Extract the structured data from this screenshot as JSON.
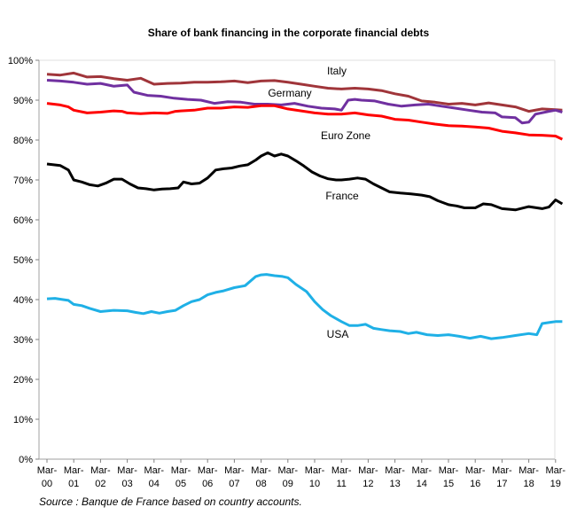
{
  "chart_data": {
    "type": "line",
    "title": "Share of bank financing in the corporate financial debts",
    "source": "Source : Banque de France based on country accounts.",
    "ylim": [
      0,
      100
    ],
    "y_ticks": [
      "0%",
      "10%",
      "20%",
      "30%",
      "40%",
      "50%",
      "60%",
      "70%",
      "80%",
      "90%",
      "100%"
    ],
    "x_ticks": [
      [
        "Mar-",
        "00"
      ],
      [
        "Mar-",
        "01"
      ],
      [
        "Mar-",
        "02"
      ],
      [
        "Mar-",
        "03"
      ],
      [
        "Mar-",
        "04"
      ],
      [
        "Mar-",
        "05"
      ],
      [
        "Mar-",
        "06"
      ],
      [
        "Mar-",
        "07"
      ],
      [
        "Mar-",
        "08"
      ],
      [
        "Mar-",
        "09"
      ],
      [
        "Mar-",
        "10"
      ],
      [
        "Mar-",
        "11"
      ],
      [
        "Mar-",
        "12"
      ],
      [
        "Mar-",
        "13"
      ],
      [
        "Mar-",
        "14"
      ],
      [
        "Mar-",
        "15"
      ],
      [
        "Mar-",
        "16"
      ],
      [
        "Mar-",
        "17"
      ],
      [
        "Mar-",
        "18"
      ],
      [
        "Mar-",
        "19"
      ]
    ],
    "x_range": [
      2000.0,
      2019.25
    ],
    "grid": false,
    "series": [
      {
        "name": "Italy",
        "color": "#A0353A",
        "points": [
          [
            2000.0,
            96.5
          ],
          [
            2000.5,
            96.3
          ],
          [
            2001.0,
            96.8
          ],
          [
            2001.5,
            95.8
          ],
          [
            2002.0,
            95.9
          ],
          [
            2002.5,
            95.4
          ],
          [
            2003.0,
            95.0
          ],
          [
            2003.5,
            95.5
          ],
          [
            2004.0,
            94.0
          ],
          [
            2004.5,
            94.2
          ],
          [
            2005.0,
            94.3
          ],
          [
            2005.5,
            94.5
          ],
          [
            2006.0,
            94.5
          ],
          [
            2006.5,
            94.6
          ],
          [
            2007.0,
            94.8
          ],
          [
            2007.5,
            94.4
          ],
          [
            2008.0,
            94.8
          ],
          [
            2008.5,
            94.9
          ],
          [
            2009.0,
            94.5
          ],
          [
            2009.5,
            94.0
          ],
          [
            2010.0,
            93.5
          ],
          [
            2010.5,
            93.0
          ],
          [
            2011.0,
            92.8
          ],
          [
            2011.5,
            93.0
          ],
          [
            2012.0,
            92.8
          ],
          [
            2012.5,
            92.4
          ],
          [
            2013.0,
            91.6
          ],
          [
            2013.5,
            91.0
          ],
          [
            2014.0,
            89.8
          ],
          [
            2014.5,
            89.5
          ],
          [
            2015.0,
            89.0
          ],
          [
            2015.5,
            89.2
          ],
          [
            2016.0,
            88.8
          ],
          [
            2016.5,
            89.3
          ],
          [
            2017.0,
            88.8
          ],
          [
            2017.5,
            88.3
          ],
          [
            2018.0,
            87.2
          ],
          [
            2018.5,
            87.8
          ],
          [
            2019.0,
            87.6
          ],
          [
            2019.25,
            87.5
          ]
        ]
      },
      {
        "name": "Germany",
        "color": "#7030A0",
        "points": [
          [
            2000.0,
            95.0
          ],
          [
            2000.5,
            94.8
          ],
          [
            2001.0,
            94.5
          ],
          [
            2001.5,
            94.0
          ],
          [
            2002.0,
            94.2
          ],
          [
            2002.5,
            93.5
          ],
          [
            2003.0,
            93.8
          ],
          [
            2003.25,
            92.0
          ],
          [
            2003.75,
            91.2
          ],
          [
            2004.25,
            91.0
          ],
          [
            2004.75,
            90.5
          ],
          [
            2005.25,
            90.2
          ],
          [
            2005.75,
            90.0
          ],
          [
            2006.25,
            89.2
          ],
          [
            2006.75,
            89.6
          ],
          [
            2007.25,
            89.5
          ],
          [
            2007.75,
            89.0
          ],
          [
            2008.25,
            89.0
          ],
          [
            2008.75,
            88.8
          ],
          [
            2009.25,
            89.2
          ],
          [
            2009.75,
            88.5
          ],
          [
            2010.25,
            88.0
          ],
          [
            2010.75,
            87.8
          ],
          [
            2011.0,
            87.5
          ],
          [
            2011.25,
            90.0
          ],
          [
            2011.5,
            90.2
          ],
          [
            2011.75,
            90.0
          ],
          [
            2012.25,
            89.8
          ],
          [
            2012.75,
            89.0
          ],
          [
            2013.25,
            88.5
          ],
          [
            2013.75,
            88.8
          ],
          [
            2014.25,
            89.0
          ],
          [
            2014.75,
            88.5
          ],
          [
            2015.25,
            88.0
          ],
          [
            2015.75,
            87.5
          ],
          [
            2016.25,
            87.0
          ],
          [
            2016.75,
            86.8
          ],
          [
            2017.0,
            85.8
          ],
          [
            2017.5,
            85.6
          ],
          [
            2017.75,
            84.3
          ],
          [
            2018.0,
            84.5
          ],
          [
            2018.25,
            86.5
          ],
          [
            2018.75,
            87.2
          ],
          [
            2019.0,
            87.5
          ],
          [
            2019.25,
            87.0
          ]
        ]
      },
      {
        "name": "Euro Zone",
        "color": "#FF0000",
        "points": [
          [
            2000.0,
            89.2
          ],
          [
            2000.5,
            88.8
          ],
          [
            2000.8,
            88.3
          ],
          [
            2001.0,
            87.5
          ],
          [
            2001.5,
            86.8
          ],
          [
            2002.0,
            87.0
          ],
          [
            2002.5,
            87.3
          ],
          [
            2002.8,
            87.2
          ],
          [
            2003.0,
            86.8
          ],
          [
            2003.5,
            86.6
          ],
          [
            2004.0,
            86.8
          ],
          [
            2004.5,
            86.7
          ],
          [
            2004.8,
            87.2
          ],
          [
            2005.0,
            87.3
          ],
          [
            2005.5,
            87.5
          ],
          [
            2006.0,
            88.0
          ],
          [
            2006.5,
            88.0
          ],
          [
            2007.0,
            88.3
          ],
          [
            2007.5,
            88.2
          ],
          [
            2008.0,
            88.6
          ],
          [
            2008.5,
            88.6
          ],
          [
            2009.0,
            87.8
          ],
          [
            2009.5,
            87.3
          ],
          [
            2010.0,
            86.8
          ],
          [
            2010.5,
            86.5
          ],
          [
            2011.0,
            86.5
          ],
          [
            2011.5,
            86.8
          ],
          [
            2012.0,
            86.3
          ],
          [
            2012.5,
            86.0
          ],
          [
            2013.0,
            85.2
          ],
          [
            2013.5,
            85.0
          ],
          [
            2014.0,
            84.5
          ],
          [
            2014.5,
            84.0
          ],
          [
            2015.0,
            83.6
          ],
          [
            2015.5,
            83.5
          ],
          [
            2016.0,
            83.3
          ],
          [
            2016.5,
            83.0
          ],
          [
            2017.0,
            82.2
          ],
          [
            2017.5,
            81.8
          ],
          [
            2018.0,
            81.3
          ],
          [
            2018.5,
            81.2
          ],
          [
            2019.0,
            81.0
          ],
          [
            2019.25,
            80.2
          ]
        ]
      },
      {
        "name": "France",
        "color": "#000000",
        "points": [
          [
            2000.0,
            74.0
          ],
          [
            2000.5,
            73.6
          ],
          [
            2000.8,
            72.5
          ],
          [
            2001.0,
            70.0
          ],
          [
            2001.3,
            69.5
          ],
          [
            2001.6,
            68.8
          ],
          [
            2001.9,
            68.5
          ],
          [
            2002.2,
            69.2
          ],
          [
            2002.5,
            70.2
          ],
          [
            2002.8,
            70.2
          ],
          [
            2003.1,
            69.0
          ],
          [
            2003.4,
            68.0
          ],
          [
            2003.7,
            67.8
          ],
          [
            2004.0,
            67.5
          ],
          [
            2004.3,
            67.7
          ],
          [
            2004.6,
            67.8
          ],
          [
            2004.9,
            68.0
          ],
          [
            2005.1,
            69.5
          ],
          [
            2005.4,
            69.0
          ],
          [
            2005.7,
            69.2
          ],
          [
            2006.0,
            70.5
          ],
          [
            2006.3,
            72.5
          ],
          [
            2006.6,
            72.8
          ],
          [
            2006.9,
            73.0
          ],
          [
            2007.2,
            73.5
          ],
          [
            2007.5,
            73.8
          ],
          [
            2007.8,
            75.0
          ],
          [
            2008.0,
            76.0
          ],
          [
            2008.25,
            76.8
          ],
          [
            2008.5,
            76.0
          ],
          [
            2008.75,
            76.5
          ],
          [
            2009.0,
            76.0
          ],
          [
            2009.3,
            74.8
          ],
          [
            2009.6,
            73.5
          ],
          [
            2009.9,
            72.0
          ],
          [
            2010.2,
            71.0
          ],
          [
            2010.5,
            70.3
          ],
          [
            2010.8,
            70.0
          ],
          [
            2011.0,
            70.0
          ],
          [
            2011.3,
            70.2
          ],
          [
            2011.6,
            70.5
          ],
          [
            2011.9,
            70.2
          ],
          [
            2012.2,
            69.0
          ],
          [
            2012.5,
            68.0
          ],
          [
            2012.8,
            67.0
          ],
          [
            2013.2,
            66.7
          ],
          [
            2013.6,
            66.5
          ],
          [
            2014.0,
            66.2
          ],
          [
            2014.3,
            65.8
          ],
          [
            2014.6,
            64.8
          ],
          [
            2015.0,
            63.8
          ],
          [
            2015.3,
            63.5
          ],
          [
            2015.6,
            63.0
          ],
          [
            2016.0,
            63.0
          ],
          [
            2016.3,
            64.0
          ],
          [
            2016.6,
            63.8
          ],
          [
            2017.0,
            62.8
          ],
          [
            2017.5,
            62.5
          ],
          [
            2018.0,
            63.3
          ],
          [
            2018.5,
            62.8
          ],
          [
            2018.75,
            63.2
          ],
          [
            2019.0,
            65.0
          ],
          [
            2019.25,
            64.0
          ]
        ]
      },
      {
        "name": "USA",
        "color": "#1FB0E6",
        "points": [
          [
            2000.0,
            40.2
          ],
          [
            2000.3,
            40.3
          ],
          [
            2000.6,
            40.0
          ],
          [
            2000.8,
            39.8
          ],
          [
            2001.0,
            38.8
          ],
          [
            2001.3,
            38.5
          ],
          [
            2001.6,
            37.8
          ],
          [
            2002.0,
            37.0
          ],
          [
            2002.5,
            37.3
          ],
          [
            2003.0,
            37.2
          ],
          [
            2003.3,
            36.8
          ],
          [
            2003.6,
            36.5
          ],
          [
            2003.9,
            37.0
          ],
          [
            2004.2,
            36.6
          ],
          [
            2004.5,
            37.0
          ],
          [
            2004.8,
            37.3
          ],
          [
            2005.1,
            38.5
          ],
          [
            2005.4,
            39.5
          ],
          [
            2005.7,
            40.0
          ],
          [
            2006.0,
            41.2
          ],
          [
            2006.3,
            41.8
          ],
          [
            2006.6,
            42.2
          ],
          [
            2007.0,
            43.0
          ],
          [
            2007.4,
            43.5
          ],
          [
            2007.8,
            45.8
          ],
          [
            2008.0,
            46.2
          ],
          [
            2008.2,
            46.3
          ],
          [
            2008.5,
            46.0
          ],
          [
            2008.8,
            45.8
          ],
          [
            2009.0,
            45.5
          ],
          [
            2009.3,
            43.8
          ],
          [
            2009.7,
            42.0
          ],
          [
            2010.0,
            39.5
          ],
          [
            2010.3,
            37.5
          ],
          [
            2010.6,
            36.0
          ],
          [
            2011.0,
            34.5
          ],
          [
            2011.3,
            33.5
          ],
          [
            2011.6,
            33.5
          ],
          [
            2011.9,
            33.8
          ],
          [
            2012.2,
            32.8
          ],
          [
            2012.5,
            32.5
          ],
          [
            2012.8,
            32.2
          ],
          [
            2013.2,
            32.0
          ],
          [
            2013.5,
            31.5
          ],
          [
            2013.8,
            31.8
          ],
          [
            2014.2,
            31.2
          ],
          [
            2014.6,
            31.0
          ],
          [
            2015.0,
            31.2
          ],
          [
            2015.4,
            30.8
          ],
          [
            2015.8,
            30.3
          ],
          [
            2016.2,
            30.8
          ],
          [
            2016.6,
            30.2
          ],
          [
            2017.0,
            30.5
          ],
          [
            2017.5,
            31.0
          ],
          [
            2018.0,
            31.5
          ],
          [
            2018.3,
            31.2
          ],
          [
            2018.5,
            34.0
          ],
          [
            2018.8,
            34.3
          ],
          [
            2019.0,
            34.5
          ],
          [
            2019.25,
            34.5
          ]
        ]
      }
    ]
  }
}
